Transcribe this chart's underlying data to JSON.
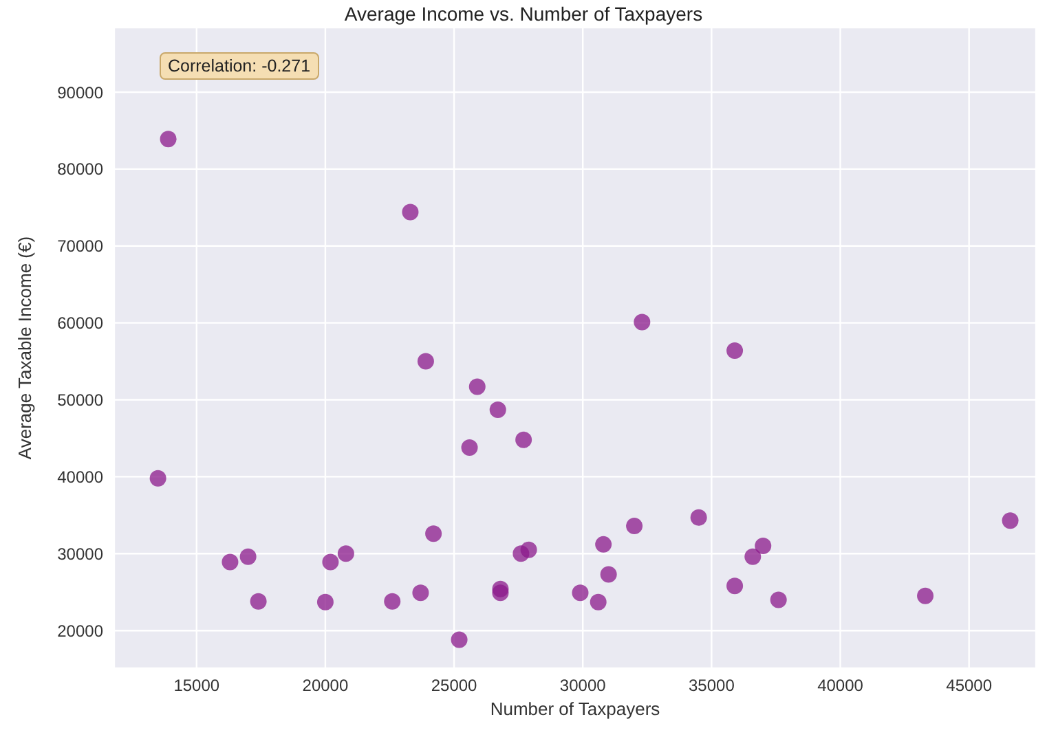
{
  "chart_data": {
    "type": "scatter",
    "title": "Average Income vs. Number of Taxpayers",
    "xlabel": "Number of Taxpayers",
    "ylabel": "Average Taxable Income (€)",
    "annotations": [
      "Correlation: -0.271"
    ],
    "x": [
      13900,
      13500,
      16300,
      17000,
      17400,
      20000,
      20200,
      20800,
      22600,
      23700,
      24200,
      23300,
      23900,
      25200,
      25900,
      25600,
      26700,
      26800,
      26800,
      27700,
      27600,
      27900,
      29900,
      30600,
      30800,
      31000,
      32000,
      32300,
      34500,
      35900,
      35900,
      36600,
      37000,
      37600,
      43300,
      46600
    ],
    "series": [
      {
        "color": "#8b1a8b",
        "values": [
          83900,
          39800,
          28900,
          29600,
          23800,
          23700,
          28900,
          30000,
          23800,
          24900,
          32600,
          74400,
          55000,
          18800,
          51700,
          43800,
          48700,
          25400,
          24900,
          44800,
          30000,
          30500,
          24900,
          23700,
          31200,
          27300,
          33600,
          60100,
          34700,
          56400,
          25800,
          29600,
          31000,
          24000,
          24500,
          34300
        ]
      }
    ],
    "xlim": [
      11800,
      47600
    ],
    "ylim": [
      15100,
      98400
    ],
    "xticks": [
      15000,
      20000,
      25000,
      30000,
      35000,
      40000,
      45000
    ],
    "yticks": [
      20000,
      30000,
      40000,
      50000,
      60000,
      70000,
      80000,
      90000
    ],
    "grid": true,
    "marker": "circle"
  }
}
